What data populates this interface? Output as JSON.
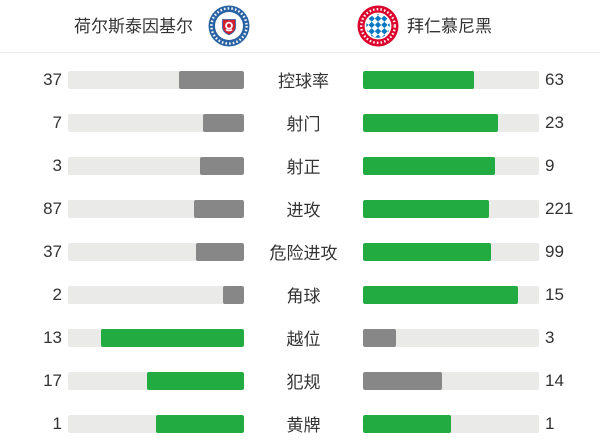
{
  "header": {
    "home_logo": "holstein-kiel-crest",
    "away_logo": "bayern-munich-crest"
  },
  "colors": {
    "green": "#22ab41",
    "gray": "#878787",
    "track": "#eaeae8",
    "text": "#333333",
    "divider": "#ebebeb",
    "kiel_blue": "#2a63a4",
    "kiel_red": "#d01f2f",
    "bayern_red": "#dc052d",
    "bayern_blue": "#0a78c2"
  },
  "chart_data": {
    "type": "bar",
    "orientation": "horizontal-paired-comparison",
    "title": "",
    "legend_position": "top",
    "grid": false,
    "categories": [
      "控球率",
      "射门",
      "射正",
      "进攻",
      "危险进攻",
      "角球",
      "越位",
      "犯规",
      "黄牌"
    ],
    "series": [
      {
        "name": "荷尔斯泰因基尔",
        "side": "left",
        "values": [
          37,
          7,
          3,
          87,
          37,
          2,
          13,
          17,
          1
        ]
      },
      {
        "name": "拜仁慕尼黑",
        "side": "right",
        "values": [
          63,
          23,
          9,
          221,
          99,
          15,
          3,
          14,
          1
        ]
      }
    ],
    "bar_rule": "each row scaled to home+away total; higher (or tied) value is green, lower is gray; left bars right-aligned, right bars left-aligned"
  }
}
